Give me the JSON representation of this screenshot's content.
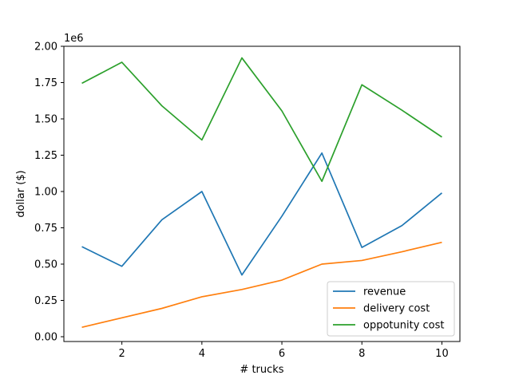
{
  "chart_data": {
    "type": "line",
    "xlabel": "# trucks",
    "ylabel": "dollar ($)",
    "y_offset_label": "1e6",
    "xlim": [
      0.55,
      10.45
    ],
    "ylim": [
      -0.033,
      2.0
    ],
    "x_ticks": [
      2,
      4,
      6,
      8,
      10
    ],
    "x_tick_labels": [
      "2",
      "4",
      "6",
      "8",
      "10"
    ],
    "y_ticks": [
      0,
      0.25,
      0.5,
      0.75,
      1.0,
      1.25,
      1.5,
      1.75,
      2.0
    ],
    "y_tick_labels": [
      "0.00",
      "0.25",
      "0.50",
      "0.75",
      "1.00",
      "1.25",
      "1.50",
      "1.75",
      "2.00"
    ],
    "grid": false,
    "legend_position": "lower-right",
    "x": [
      1,
      2,
      3,
      4,
      5,
      6,
      7,
      8,
      9,
      10
    ],
    "series": [
      {
        "name": "revenue",
        "color": "#1f77b4",
        "values": [
          0.62,
          0.485,
          0.805,
          1.0,
          0.425,
          0.83,
          1.265,
          0.615,
          0.765,
          0.99
        ]
      },
      {
        "name": "delivery cost",
        "color": "#ff7f0e",
        "values": [
          0.065,
          0.13,
          0.195,
          0.275,
          0.325,
          0.39,
          0.5,
          0.525,
          0.585,
          0.65
        ]
      },
      {
        "name": "oppotunity cost",
        "color": "#2ca02c",
        "values": [
          1.745,
          1.89,
          1.59,
          1.355,
          1.92,
          1.555,
          1.07,
          1.735,
          1.56,
          1.375
        ]
      }
    ]
  }
}
